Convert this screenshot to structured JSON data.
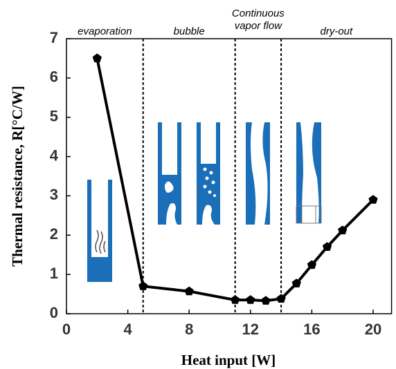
{
  "chart_data": {
    "type": "line",
    "xlabel": "Heat input [W]",
    "ylabel": "Thermal resistance, R[°C/W]",
    "x": [
      2,
      5,
      8,
      11,
      12,
      13,
      14,
      15,
      16,
      17,
      18,
      20
    ],
    "series": [
      {
        "name": null,
        "color": "#000000",
        "values": [
          6.5,
          0.7,
          0.57,
          0.35,
          0.35,
          0.33,
          0.38,
          0.77,
          1.24,
          1.7,
          2.12,
          2.9
        ]
      }
    ],
    "xlim": [
      0,
      21.2
    ],
    "ylim": [
      0,
      7
    ],
    "xticks": [
      0,
      4,
      8,
      12,
      16,
      20
    ],
    "yticks": [
      0,
      1,
      2,
      3,
      4,
      5,
      6,
      7
    ],
    "vlines": [
      5,
      11,
      14
    ],
    "regions": [
      "evaporation",
      "bubble",
      [
        "Continuous",
        "vapor flow"
      ],
      "dry-out"
    ]
  }
}
